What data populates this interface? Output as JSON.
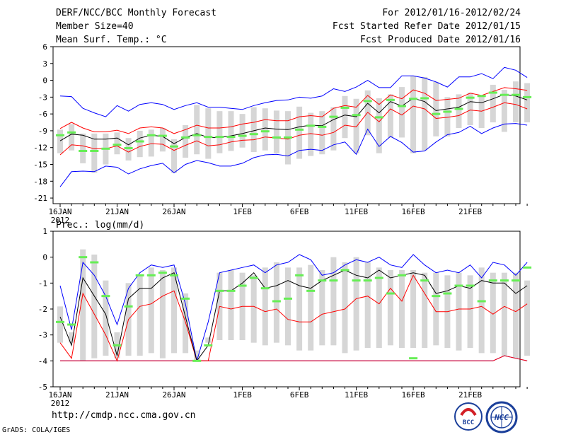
{
  "header": {
    "title": "DERF/NCC/BCC Monthly Forecast",
    "member_size": "Member Size=40",
    "variable": "Mean Surf. Temp.: °C",
    "period": "For 2012/01/16-2012/02/24",
    "fcst_started": "Fcst Started Refer Date 2012/01/15",
    "fcst_produced": "Fcst Produced Date 2012/01/16"
  },
  "footer": {
    "url": "http://cmdp.ncc.cma.gov.cn",
    "credit": "GrADS: COLA/IGES",
    "logo_left": "BCC",
    "logo_right": "NCC"
  },
  "colors": {
    "mean": "#000000",
    "spread": "#ff0000",
    "envelope": "#0000ff",
    "box": "#d6d6d6",
    "obs": "#66ee55"
  },
  "chart_data": [
    {
      "type": "box_plume",
      "title": "Mean Surf. Temp.: °C",
      "x_labels": [
        "16JAN",
        "21JAN",
        "26JAN",
        "1FEB",
        "6FEB",
        "11FEB",
        "16FEB",
        "21FEB"
      ],
      "x_label_days": [
        1,
        6,
        11,
        17,
        22,
        27,
        32,
        37
      ],
      "year_label": "2012",
      "days": 40,
      "ylim": [
        -22,
        6
      ],
      "yticks": [
        -21,
        -18,
        -15,
        -12,
        -9,
        -6,
        -3,
        0,
        3,
        6
      ],
      "series": [
        {
          "name": "max",
          "values": [
            -2.8,
            -2.9,
            -5,
            -5.8,
            -6.5,
            -4.5,
            -5.5,
            -4.3,
            -4,
            -4.3,
            -5.2,
            -4.5,
            -4,
            -4.8,
            -4.8,
            -5,
            -5.2,
            -4.5,
            -4,
            -3.6,
            -3.5,
            -3,
            -3.2,
            -2.8,
            -1.5,
            -2,
            -1.2,
            0,
            -1.3,
            -1.3,
            0.8,
            0.8,
            0.4,
            -0.3,
            -1.2,
            0.6,
            0.6,
            1.2,
            0.3,
            2.3,
            1.8,
            0.5
          ]
        },
        {
          "name": "upper",
          "values": [
            -8.6,
            -7.5,
            -8.5,
            -9.2,
            -9.2,
            -8.9,
            -9.5,
            -8.5,
            -8.3,
            -8.5,
            -9.5,
            -8.8,
            -8,
            -8.5,
            -8.5,
            -8.3,
            -7.8,
            -7.5,
            -7,
            -7.2,
            -7.2,
            -6.5,
            -6.3,
            -6.5,
            -5,
            -4.5,
            -4.8,
            -2.7,
            -4.3,
            -2.6,
            -3.3,
            -1.7,
            -2.3,
            -3.6,
            -3.4,
            -3.2,
            -2.3,
            -2.7,
            -2,
            -1.3,
            -1.5,
            -1.8
          ]
        },
        {
          "name": "mean",
          "values": [
            -10.8,
            -9.6,
            -9.8,
            -10.5,
            -10.5,
            -10.3,
            -11.5,
            -10.3,
            -9.8,
            -10,
            -11.3,
            -10.2,
            -9.5,
            -10.2,
            -10.2,
            -9.9,
            -9.5,
            -9,
            -8.5,
            -8.7,
            -8.8,
            -8.3,
            -8,
            -8.1,
            -7,
            -6.2,
            -6.5,
            -4.1,
            -5.8,
            -3.8,
            -4.6,
            -3.2,
            -3.8,
            -5.4,
            -5.1,
            -4.8,
            -3.8,
            -4,
            -3.3,
            -2.5,
            -2.8,
            -3.5
          ]
        },
        {
          "name": "lower",
          "values": [
            -13.3,
            -11.5,
            -11.7,
            -12.2,
            -12.2,
            -11.7,
            -12.8,
            -11.8,
            -11.3,
            -11.4,
            -12.5,
            -11.6,
            -10.8,
            -11.7,
            -11.5,
            -11,
            -10.7,
            -10.6,
            -10.1,
            -10.3,
            -10.5,
            -9.8,
            -9.5,
            -9.8,
            -9.3,
            -8,
            -8.3,
            -5.7,
            -7.4,
            -5.1,
            -6.2,
            -4.6,
            -5.1,
            -6.8,
            -6.6,
            -6.3,
            -5.3,
            -5.5,
            -4.8,
            -4,
            -4.3,
            -5.1
          ]
        },
        {
          "name": "min",
          "values": [
            -19,
            -16.3,
            -16.2,
            -16.3,
            -15.3,
            -15.5,
            -16.7,
            -15.8,
            -15.2,
            -14.8,
            -16.5,
            -15,
            -14.3,
            -14.7,
            -15.3,
            -15.3,
            -14.8,
            -13.8,
            -13.3,
            -13.2,
            -13.5,
            -12.5,
            -12.3,
            -12.5,
            -11.5,
            -11,
            -13.2,
            -8.7,
            -11.8,
            -10,
            -11.1,
            -12.8,
            -12.6,
            -11,
            -9.7,
            -9.3,
            -8.2,
            -9.5,
            -8.5,
            -7.8,
            -7.7,
            -8
          ]
        },
        {
          "name": "box_high",
          "values": [
            -8.8,
            -7.8,
            -9.5,
            -9.5,
            -9.5,
            -9.3,
            -10.3,
            -9,
            -8.8,
            -8.5,
            -10.5,
            -8,
            -4.4,
            -5,
            -5.5,
            -5.5,
            -6,
            -4.8,
            -5,
            -5.4,
            -5.5,
            -4.7,
            -5.8,
            -5.5,
            -4.8,
            -2.8,
            -3.3,
            -1.8,
            -3.2,
            -2.5,
            -1.2,
            0.7,
            0.6,
            -0.3,
            -3,
            -2.5,
            -2.2,
            -2.7,
            -0.8,
            -1.7,
            -0.2,
            -0.5
          ]
        },
        {
          "name": "box_low",
          "values": [
            -13,
            -12.5,
            -14.8,
            -16.5,
            -15,
            -13.2,
            -14.3,
            -13.7,
            -13.6,
            -12.7,
            -16.5,
            -13.8,
            -13.2,
            -14,
            -13,
            -12.6,
            -12,
            -12.8,
            -12.5,
            -13,
            -15,
            -14,
            -13.5,
            -13.2,
            -12.5,
            -10.3,
            -13,
            -9.8,
            -13,
            -10.2,
            -10.2,
            -13,
            -12.5,
            -10,
            -10,
            -8.5,
            -8,
            -8.5,
            -7.5,
            -9.2,
            -7.5,
            -7.5
          ]
        },
        {
          "name": "observed",
          "values": [
            -9.8,
            -9.3,
            -12.6,
            -12.6,
            -12.2,
            -11.5,
            -12.1,
            -10.9,
            -9.8,
            -9.9,
            -11.8,
            -10.2,
            -9.8,
            -10.1,
            -10.1,
            -10.1,
            -9.9,
            -9.6,
            -9.1,
            -10.2,
            -10.2,
            -8.8,
            -8.1,
            -8.3,
            -6.5,
            -4.9,
            -6.2,
            -3.7,
            -6.6,
            -3.5,
            -4.6,
            -3.3,
            -3.2,
            -6.0,
            -5.6,
            -5.1,
            -3.1,
            -2.8,
            -2.2,
            -2.6,
            -2.6,
            -3.0
          ]
        }
      ]
    },
    {
      "type": "box_plume",
      "title": "Prec.: log(mm/d)",
      "x_labels": [
        "16JAN",
        "21JAN",
        "26JAN",
        "1FEB",
        "6FEB",
        "11FEB",
        "16FEB",
        "21FEB"
      ],
      "x_label_days": [
        1,
        6,
        11,
        17,
        22,
        27,
        32,
        37
      ],
      "year_label": "2012",
      "days": 40,
      "ylim": [
        -5,
        1
      ],
      "yticks": [
        -5,
        -4,
        -3,
        -2,
        -1,
        0,
        1
      ],
      "series": [
        {
          "name": "max",
          "values": [
            -1.1,
            -2.8,
            -0.2,
            -0.7,
            -1.5,
            -2.6,
            -1.2,
            -0.6,
            -0.3,
            -0.4,
            -0.3,
            -1.8,
            -4,
            -2.5,
            -0.6,
            -0.5,
            -0.4,
            -0.3,
            -0.6,
            -0.3,
            -0.2,
            0.1,
            -0.1,
            -0.7,
            -0.6,
            -0.3,
            -0.1,
            -0.2,
            0,
            -0.3,
            -0.4,
            0.1,
            -0.3,
            -0.6,
            -0.5,
            -0.6,
            -0.3,
            -0.8,
            -0.2,
            -0.3,
            -0.7,
            -0.2
          ]
        },
        {
          "name": "mean",
          "values": [
            -2.3,
            -3.4,
            -0.8,
            -1.5,
            -2.2,
            -3.8,
            -1.6,
            -1.2,
            -1.2,
            -0.8,
            -0.6,
            -2.3,
            -4,
            -3.4,
            -1.3,
            -1.3,
            -1,
            -0.6,
            -1.2,
            -1.1,
            -0.9,
            -1.1,
            -1.2,
            -0.9,
            -0.7,
            -0.5,
            -0.7,
            -0.8,
            -0.5,
            -0.8,
            -0.7,
            -0.6,
            -0.7,
            -1.4,
            -1.3,
            -1.1,
            -1.2,
            -0.9,
            -1,
            -1,
            -1.4,
            -1.1
          ]
        },
        {
          "name": "lower",
          "values": [
            -3.3,
            -3.9,
            -1.4,
            -2.2,
            -3,
            -4,
            -2.4,
            -1.9,
            -1.8,
            -1.5,
            -1.3,
            -2.5,
            -4,
            -4,
            -1.9,
            -2,
            -1.9,
            -1.9,
            -2.1,
            -2,
            -2.4,
            -2.5,
            -2.5,
            -2.2,
            -2.1,
            -2,
            -1.6,
            -1.5,
            -1.8,
            -1.2,
            -1.7,
            -0.7,
            -1.4,
            -2.1,
            -2.1,
            -2,
            -2,
            -1.9,
            -2.2,
            -1.9,
            -2.1,
            -1.8
          ]
        },
        {
          "name": "min",
          "values": [
            -4,
            -4,
            -4,
            -4,
            -4,
            -4,
            -4,
            -4,
            -4,
            -4,
            -4,
            -4,
            -4,
            -4,
            -4,
            -4,
            -4,
            -4,
            -4,
            -4,
            -4,
            -4,
            -4,
            -4,
            -4,
            -4,
            -4,
            -4,
            -4,
            -4,
            -4,
            -4,
            -4,
            -4,
            -4,
            -4,
            -4,
            -4,
            -4,
            -3.8,
            -3.9,
            -4
          ]
        },
        {
          "name": "box_high",
          "values": [
            -1.9,
            -2.9,
            0.3,
            0.1,
            -0.9,
            -2.9,
            -1,
            -0.7,
            -0.4,
            -0.5,
            -0.4,
            -1.4,
            -3.6,
            -3.1,
            -0.6,
            -0.5,
            -0.6,
            -0.7,
            -0.4,
            -0.2,
            -0.4,
            -0.4,
            -0.3,
            -0.5,
            0,
            -0.2,
            0,
            -0.2,
            -0.4,
            -0.5,
            -0.5,
            -0.5,
            -0.6,
            -0.6,
            -0.7,
            -0.6,
            -0.7,
            -0.4,
            -0.6,
            -0.6,
            -0.6,
            -0.9
          ]
        },
        {
          "name": "box_low",
          "values": [
            -3.3,
            -3.3,
            -4,
            -3.9,
            -3.8,
            -3.9,
            -3.8,
            -3.8,
            -3.7,
            -3.9,
            -3.7,
            -3.7,
            -4,
            -3.3,
            -3.2,
            -3.2,
            -3.2,
            -3.3,
            -3.4,
            -3.3,
            -3.4,
            -3.6,
            -3.6,
            -3.4,
            -3.4,
            -3.7,
            -3.6,
            -3.5,
            -3.5,
            -3.4,
            -3.5,
            -3.5,
            -3.5,
            -3.4,
            -3.5,
            -3.6,
            -3.5,
            -3.7,
            -3.7,
            -3.8,
            -3.9,
            -3.8
          ]
        },
        {
          "name": "observed",
          "values": [
            -2.5,
            -2.6,
            0,
            -0.2,
            -1.5,
            -3.4,
            -1.9,
            -0.7,
            -0.7,
            -0.6,
            -0.7,
            -1.6,
            -4,
            -3.4,
            -1.3,
            -1.3,
            -1.1,
            -0.8,
            -1.2,
            -1.7,
            -1.6,
            -0.7,
            -1.3,
            -0.9,
            -0.9,
            -0.5,
            -0.9,
            -0.9,
            -0.8,
            -1.4,
            -0.7,
            -3.9,
            -0.9,
            -1.5,
            -1.4,
            -1.1,
            -1.1,
            -1.7,
            -0.9,
            -0.9,
            -0.9,
            -0.4
          ]
        }
      ]
    }
  ]
}
